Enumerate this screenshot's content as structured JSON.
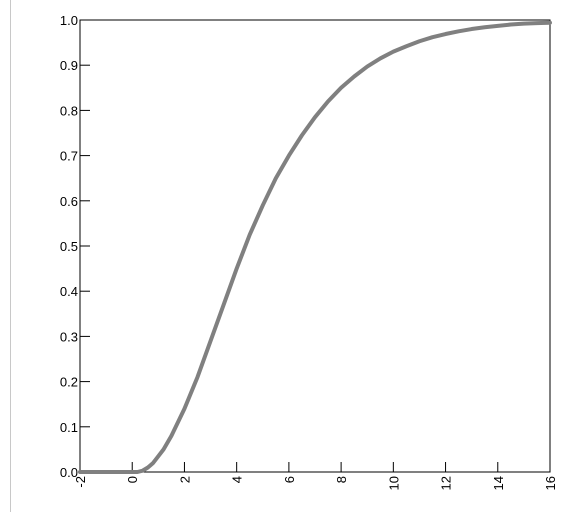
{
  "chart_data": {
    "type": "line",
    "title": "",
    "xlabel": "",
    "ylabel": "",
    "xlim": [
      -2,
      16
    ],
    "ylim": [
      0,
      1
    ],
    "grid": false,
    "x_ticks": [
      {
        "value": -2,
        "label": "-2"
      },
      {
        "value": 0,
        "label": "0"
      },
      {
        "value": 2,
        "label": "2"
      },
      {
        "value": 4,
        "label": "4"
      },
      {
        "value": 6,
        "label": "6"
      },
      {
        "value": 8,
        "label": "8"
      },
      {
        "value": 10,
        "label": "10"
      },
      {
        "value": 12,
        "label": "12"
      },
      {
        "value": 14,
        "label": "14"
      },
      {
        "value": 16,
        "label": "16"
      }
    ],
    "y_ticks": [
      {
        "value": 0.0,
        "label": "0.0"
      },
      {
        "value": 0.1,
        "label": "0.1"
      },
      {
        "value": 0.2,
        "label": "0.2"
      },
      {
        "value": 0.3,
        "label": "0.3"
      },
      {
        "value": 0.4,
        "label": "0.4"
      },
      {
        "value": 0.5,
        "label": "0.5"
      },
      {
        "value": 0.6,
        "label": "0.6"
      },
      {
        "value": 0.7,
        "label": "0.7"
      },
      {
        "value": 0.8,
        "label": "0.8"
      },
      {
        "value": 0.9,
        "label": "0.9"
      },
      {
        "value": 1.0,
        "label": "1.0"
      }
    ],
    "series": [
      {
        "color": "#808080",
        "x": [
          -2,
          0,
          0.2,
          0.4,
          0.6,
          0.8,
          1.0,
          1.2,
          1.5,
          2.0,
          2.5,
          3.0,
          3.5,
          4.0,
          4.5,
          5.0,
          5.5,
          6.0,
          6.5,
          7.0,
          7.5,
          8.0,
          8.5,
          9.0,
          9.5,
          10.0,
          10.5,
          11.0,
          11.5,
          12.0,
          12.5,
          13.0,
          13.5,
          14.0,
          14.5,
          15.0,
          15.5,
          16.0
        ],
        "y": [
          0,
          0,
          0,
          0.003,
          0.01,
          0.02,
          0.035,
          0.05,
          0.08,
          0.14,
          0.21,
          0.29,
          0.37,
          0.45,
          0.525,
          0.59,
          0.65,
          0.7,
          0.745,
          0.785,
          0.82,
          0.85,
          0.875,
          0.897,
          0.915,
          0.93,
          0.942,
          0.953,
          0.962,
          0.969,
          0.975,
          0.98,
          0.984,
          0.987,
          0.99,
          0.992,
          0.993,
          0.994
        ]
      }
    ]
  }
}
